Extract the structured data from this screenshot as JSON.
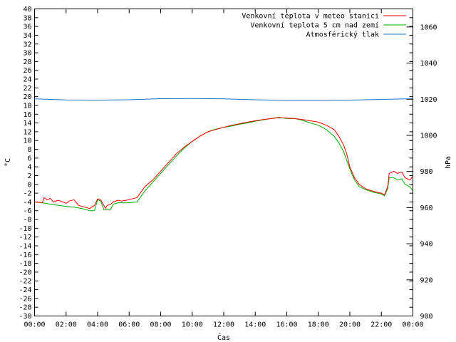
{
  "chart_data": {
    "type": "line",
    "xlabel": "Čas",
    "ylabel_left": "°C",
    "ylabel_right": "hPa",
    "x_unit": "hours",
    "xlim": [
      0,
      24
    ],
    "x_tick_values": [
      0,
      2,
      4,
      6,
      8,
      10,
      12,
      14,
      16,
      18,
      20,
      22,
      24
    ],
    "x_tick_labels": [
      "00:00",
      "02:00",
      "04:00",
      "06:00",
      "08:00",
      "10:00",
      "12:00",
      "14:00",
      "16:00",
      "18:00",
      "20:00",
      "22:00",
      "00:00"
    ],
    "ylim_left": [
      -30,
      40
    ],
    "y_left_tick_step": 2,
    "ylim_right": [
      900,
      1070
    ],
    "y_right_ticks": [
      900,
      920,
      940,
      960,
      980,
      1000,
      1020,
      1040,
      1060
    ],
    "grid": false,
    "legend_position": "top-right",
    "series": [
      {
        "name": "Venkovní teplota v meteo stanici",
        "color": "#ff0000",
        "axis": "left",
        "x": [
          0,
          0.5,
          0.6,
          0.8,
          1.0,
          1.2,
          1.5,
          2.0,
          2.2,
          2.5,
          2.8,
          3.0,
          3.2,
          3.5,
          3.8,
          4.0,
          4.2,
          4.5,
          4.6,
          4.8,
          5.0,
          5.3,
          5.5,
          6.0,
          6.5,
          7.0,
          7.5,
          8.0,
          8.5,
          9.0,
          9.5,
          10.0,
          10.5,
          11.0,
          11.5,
          12.0,
          12.5,
          13.0,
          13.5,
          14.0,
          14.5,
          15.0,
          15.5,
          16.0,
          16.5,
          17.0,
          17.5,
          18.0,
          18.5,
          19.0,
          19.3,
          19.6,
          19.8,
          20.0,
          20.3,
          20.6,
          21.0,
          21.5,
          22.0,
          22.2,
          22.4,
          22.5,
          22.8,
          23.0,
          23.3,
          23.5,
          23.8,
          24.0
        ],
        "y": [
          -4.0,
          -4.2,
          -3.0,
          -3.5,
          -3.2,
          -4.0,
          -3.6,
          -4.3,
          -3.8,
          -3.5,
          -4.8,
          -5.0,
          -5.2,
          -5.5,
          -4.8,
          -3.3,
          -3.5,
          -5.5,
          -4.8,
          -4.6,
          -4.0,
          -3.6,
          -3.8,
          -3.5,
          -3.0,
          -0.5,
          1.0,
          3.0,
          5.0,
          7.0,
          8.5,
          9.8,
          11.0,
          12.0,
          12.5,
          13.0,
          13.5,
          13.8,
          14.2,
          14.5,
          14.8,
          15.0,
          15.2,
          15.1,
          15.0,
          14.8,
          14.5,
          14.2,
          13.5,
          12.5,
          11.0,
          9.0,
          7.0,
          4.0,
          1.5,
          0.0,
          -1.0,
          -1.6,
          -2.0,
          -2.4,
          -0.5,
          2.5,
          3.0,
          2.5,
          2.8,
          1.5,
          1.0,
          1.8
        ]
      },
      {
        "name": "Venkovní teplota 5 cm nad zemí",
        "color": "#00aa00",
        "axis": "left",
        "x": [
          0,
          0.5,
          1.0,
          1.5,
          2.0,
          2.5,
          3.0,
          3.5,
          3.8,
          4.0,
          4.2,
          4.4,
          4.6,
          4.8,
          5.0,
          5.3,
          5.5,
          6.0,
          6.5,
          7.0,
          7.5,
          8.0,
          8.5,
          9.0,
          9.5,
          10.0,
          10.5,
          11.0,
          11.5,
          12.0,
          12.5,
          13.0,
          13.5,
          14.0,
          14.5,
          15.0,
          15.5,
          16.0,
          16.5,
          17.0,
          17.5,
          18.0,
          18.5,
          19.0,
          19.3,
          19.6,
          19.8,
          20.0,
          20.3,
          20.6,
          21.0,
          21.5,
          22.0,
          22.2,
          22.4,
          22.5,
          22.8,
          23.0,
          23.3,
          23.5,
          23.8,
          24.0
        ],
        "y": [
          -4.0,
          -4.2,
          -4.5,
          -4.8,
          -5.0,
          -5.2,
          -5.5,
          -6.0,
          -6.0,
          -3.5,
          -3.8,
          -5.8,
          -5.8,
          -5.8,
          -4.5,
          -4.2,
          -4.2,
          -4.2,
          -4.0,
          -1.5,
          0.5,
          2.5,
          4.5,
          6.5,
          8.3,
          9.8,
          11.0,
          12.0,
          12.6,
          13.0,
          13.3,
          13.7,
          14.0,
          14.4,
          14.7,
          15.0,
          15.3,
          15.0,
          15.0,
          14.6,
          14.0,
          13.5,
          12.5,
          11.0,
          9.5,
          7.5,
          5.5,
          3.5,
          1.0,
          -0.5,
          -1.2,
          -1.8,
          -2.2,
          -2.6,
          -1.0,
          1.5,
          1.5,
          1.0,
          1.3,
          0.0,
          -0.5,
          -1.5
        ]
      },
      {
        "name": "Atmosférický tlak",
        "color": "#1e72c8",
        "axis": "right",
        "x": [
          0,
          2,
          4,
          6,
          8,
          10,
          12,
          14,
          16,
          18,
          20,
          22,
          24
        ],
        "y": [
          1020.2,
          1019.6,
          1019.5,
          1019.7,
          1020.3,
          1020.4,
          1020.2,
          1019.7,
          1019.3,
          1019.3,
          1019.5,
          1019.9,
          1020.3
        ]
      }
    ]
  }
}
